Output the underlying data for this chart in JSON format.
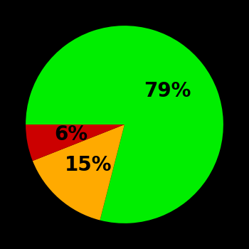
{
  "slices": [
    79,
    15,
    6
  ],
  "colors": [
    "#00ee00",
    "#ffaa00",
    "#cc0000"
  ],
  "labels": [
    "79%",
    "15%",
    "6%"
  ],
  "background_color": "#000000",
  "startangle": 180,
  "label_fontsize": 20,
  "label_fontweight": "bold",
  "label_color": "#000000",
  "label_radii": [
    0.55,
    0.55,
    0.55
  ]
}
